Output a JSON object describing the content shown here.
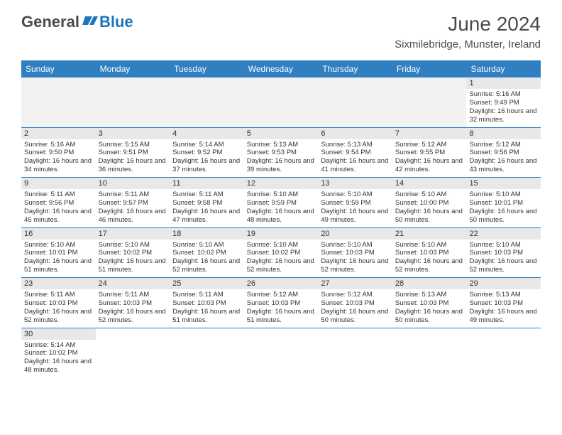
{
  "logo": {
    "part1": "General",
    "part2": "Blue"
  },
  "title": "June 2024",
  "location": "Sixmilebridge, Munster, Ireland",
  "colors": {
    "header_bg": "#2f7fc1",
    "header_text": "#ffffff",
    "daynum_bg": "#e8e8e8",
    "empty_bg": "#f2f2f2",
    "border": "#2f7fc1"
  },
  "day_names": [
    "Sunday",
    "Monday",
    "Tuesday",
    "Wednesday",
    "Thursday",
    "Friday",
    "Saturday"
  ],
  "weeks": [
    {
      "nums": [
        "",
        "",
        "",
        "",
        "",
        "",
        "1"
      ],
      "cells": [
        null,
        null,
        null,
        null,
        null,
        null,
        {
          "sunrise": "Sunrise: 5:16 AM",
          "sunset": "Sunset: 9:49 PM",
          "daylight": "Daylight: 16 hours and 32 minutes."
        }
      ]
    },
    {
      "nums": [
        "2",
        "3",
        "4",
        "5",
        "6",
        "7",
        "8"
      ],
      "cells": [
        {
          "sunrise": "Sunrise: 5:16 AM",
          "sunset": "Sunset: 9:50 PM",
          "daylight": "Daylight: 16 hours and 34 minutes."
        },
        {
          "sunrise": "Sunrise: 5:15 AM",
          "sunset": "Sunset: 9:51 PM",
          "daylight": "Daylight: 16 hours and 36 minutes."
        },
        {
          "sunrise": "Sunrise: 5:14 AM",
          "sunset": "Sunset: 9:52 PM",
          "daylight": "Daylight: 16 hours and 37 minutes."
        },
        {
          "sunrise": "Sunrise: 5:13 AM",
          "sunset": "Sunset: 9:53 PM",
          "daylight": "Daylight: 16 hours and 39 minutes."
        },
        {
          "sunrise": "Sunrise: 5:13 AM",
          "sunset": "Sunset: 9:54 PM",
          "daylight": "Daylight: 16 hours and 41 minutes."
        },
        {
          "sunrise": "Sunrise: 5:12 AM",
          "sunset": "Sunset: 9:55 PM",
          "daylight": "Daylight: 16 hours and 42 minutes."
        },
        {
          "sunrise": "Sunrise: 5:12 AM",
          "sunset": "Sunset: 9:56 PM",
          "daylight": "Daylight: 16 hours and 43 minutes."
        }
      ]
    },
    {
      "nums": [
        "9",
        "10",
        "11",
        "12",
        "13",
        "14",
        "15"
      ],
      "cells": [
        {
          "sunrise": "Sunrise: 5:11 AM",
          "sunset": "Sunset: 9:56 PM",
          "daylight": "Daylight: 16 hours and 45 minutes."
        },
        {
          "sunrise": "Sunrise: 5:11 AM",
          "sunset": "Sunset: 9:57 PM",
          "daylight": "Daylight: 16 hours and 46 minutes."
        },
        {
          "sunrise": "Sunrise: 5:11 AM",
          "sunset": "Sunset: 9:58 PM",
          "daylight": "Daylight: 16 hours and 47 minutes."
        },
        {
          "sunrise": "Sunrise: 5:10 AM",
          "sunset": "Sunset: 9:59 PM",
          "daylight": "Daylight: 16 hours and 48 minutes."
        },
        {
          "sunrise": "Sunrise: 5:10 AM",
          "sunset": "Sunset: 9:59 PM",
          "daylight": "Daylight: 16 hours and 49 minutes."
        },
        {
          "sunrise": "Sunrise: 5:10 AM",
          "sunset": "Sunset: 10:00 PM",
          "daylight": "Daylight: 16 hours and 50 minutes."
        },
        {
          "sunrise": "Sunrise: 5:10 AM",
          "sunset": "Sunset: 10:01 PM",
          "daylight": "Daylight: 16 hours and 50 minutes."
        }
      ]
    },
    {
      "nums": [
        "16",
        "17",
        "18",
        "19",
        "20",
        "21",
        "22"
      ],
      "cells": [
        {
          "sunrise": "Sunrise: 5:10 AM",
          "sunset": "Sunset: 10:01 PM",
          "daylight": "Daylight: 16 hours and 51 minutes."
        },
        {
          "sunrise": "Sunrise: 5:10 AM",
          "sunset": "Sunset: 10:02 PM",
          "daylight": "Daylight: 16 hours and 51 minutes."
        },
        {
          "sunrise": "Sunrise: 5:10 AM",
          "sunset": "Sunset: 10:02 PM",
          "daylight": "Daylight: 16 hours and 52 minutes."
        },
        {
          "sunrise": "Sunrise: 5:10 AM",
          "sunset": "Sunset: 10:02 PM",
          "daylight": "Daylight: 16 hours and 52 minutes."
        },
        {
          "sunrise": "Sunrise: 5:10 AM",
          "sunset": "Sunset: 10:03 PM",
          "daylight": "Daylight: 16 hours and 52 minutes."
        },
        {
          "sunrise": "Sunrise: 5:10 AM",
          "sunset": "Sunset: 10:03 PM",
          "daylight": "Daylight: 16 hours and 52 minutes."
        },
        {
          "sunrise": "Sunrise: 5:10 AM",
          "sunset": "Sunset: 10:03 PM",
          "daylight": "Daylight: 16 hours and 52 minutes."
        }
      ]
    },
    {
      "nums": [
        "23",
        "24",
        "25",
        "26",
        "27",
        "28",
        "29"
      ],
      "cells": [
        {
          "sunrise": "Sunrise: 5:11 AM",
          "sunset": "Sunset: 10:03 PM",
          "daylight": "Daylight: 16 hours and 52 minutes."
        },
        {
          "sunrise": "Sunrise: 5:11 AM",
          "sunset": "Sunset: 10:03 PM",
          "daylight": "Daylight: 16 hours and 52 minutes."
        },
        {
          "sunrise": "Sunrise: 5:11 AM",
          "sunset": "Sunset: 10:03 PM",
          "daylight": "Daylight: 16 hours and 51 minutes."
        },
        {
          "sunrise": "Sunrise: 5:12 AM",
          "sunset": "Sunset: 10:03 PM",
          "daylight": "Daylight: 16 hours and 51 minutes."
        },
        {
          "sunrise": "Sunrise: 5:12 AM",
          "sunset": "Sunset: 10:03 PM",
          "daylight": "Daylight: 16 hours and 50 minutes."
        },
        {
          "sunrise": "Sunrise: 5:13 AM",
          "sunset": "Sunset: 10:03 PM",
          "daylight": "Daylight: 16 hours and 50 minutes."
        },
        {
          "sunrise": "Sunrise: 5:13 AM",
          "sunset": "Sunset: 10:03 PM",
          "daylight": "Daylight: 16 hours and 49 minutes."
        }
      ]
    },
    {
      "nums": [
        "30",
        "",
        "",
        "",
        "",
        "",
        ""
      ],
      "cells": [
        {
          "sunrise": "Sunrise: 5:14 AM",
          "sunset": "Sunset: 10:02 PM",
          "daylight": "Daylight: 16 hours and 48 minutes."
        },
        null,
        null,
        null,
        null,
        null,
        null
      ]
    }
  ]
}
